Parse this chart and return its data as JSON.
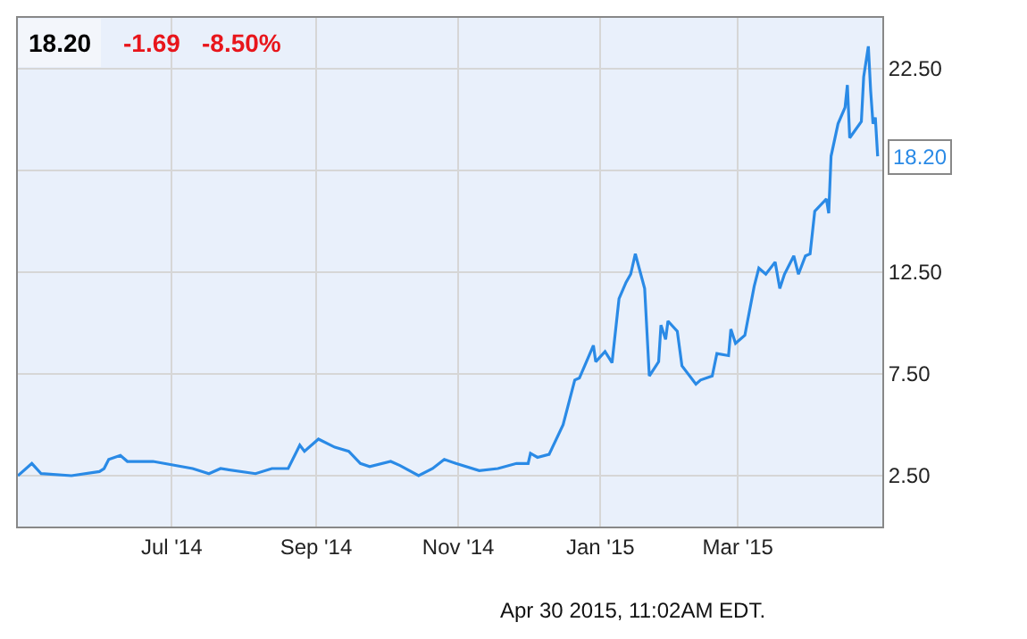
{
  "chart_data": {
    "type": "line",
    "title": "18.20",
    "annotations": [
      "-1.69",
      "-8.50%",
      "Apr 30 2015, 11:02AM EDT.",
      {
        "text": "18.20",
        "x": "2015-04-30",
        "y": 18.2
      }
    ],
    "x": [
      "2014-04-26",
      "2014-05-02",
      "2014-05-06",
      "2014-05-19",
      "2014-05-31",
      "2014-06-02",
      "2014-06-04",
      "2014-06-09",
      "2014-06-12",
      "2014-06-23",
      "2014-07-10",
      "2014-07-17",
      "2014-07-22",
      "2014-08-06",
      "2014-08-13",
      "2014-08-20",
      "2014-08-25",
      "2014-08-27",
      "2014-09-02",
      "2014-09-09",
      "2014-09-15",
      "2014-09-20",
      "2014-09-24",
      "2014-10-03",
      "2014-10-07",
      "2014-10-15",
      "2014-10-21",
      "2014-10-26",
      "2014-10-31",
      "2014-11-10",
      "2014-11-18",
      "2014-11-26",
      "2014-12-01",
      "2014-12-02",
      "2014-12-05",
      "2014-12-10",
      "2014-12-16",
      "2014-12-21",
      "2014-12-23",
      "2014-12-26",
      "2014-12-29",
      "2014-12-30",
      "2015-01-03",
      "2015-01-06",
      "2015-01-09",
      "2015-01-12",
      "2015-01-14",
      "2015-01-16",
      "2015-01-20",
      "2015-01-22",
      "2015-01-26",
      "2015-01-27",
      "2015-01-29",
      "2015-01-30",
      "2015-02-03",
      "2015-02-05",
      "2015-02-11",
      "2015-02-13",
      "2015-02-18",
      "2015-02-20",
      "2015-02-25",
      "2015-02-26",
      "2015-02-28",
      "2015-03-04",
      "2015-03-08",
      "2015-03-10",
      "2015-03-13",
      "2015-03-17",
      "2015-03-19",
      "2015-03-21",
      "2015-03-25",
      "2015-03-27",
      "2015-03-30",
      "2015-04-01",
      "2015-04-03",
      "2015-04-08",
      "2015-04-09",
      "2015-04-10",
      "2015-04-13",
      "2015-04-16",
      "2015-04-17",
      "2015-04-18",
      "2015-04-23",
      "2015-04-24",
      "2015-04-26",
      "2015-04-27",
      "2015-04-28",
      "2015-04-29",
      "2015-04-30"
    ],
    "series": [
      {
        "color": "#2a8ae6",
        "values": [
          2.5,
          3.1,
          2.6,
          2.5,
          2.7,
          2.85,
          3.3,
          3.5,
          3.2,
          3.2,
          2.85,
          2.6,
          2.85,
          2.6,
          2.85,
          2.85,
          4.0,
          3.7,
          4.3,
          3.9,
          3.7,
          3.1,
          2.95,
          3.2,
          3.0,
          2.5,
          2.85,
          3.3,
          3.1,
          2.75,
          2.85,
          3.1,
          3.1,
          3.6,
          3.4,
          3.55,
          5.0,
          7.2,
          7.3,
          8.1,
          8.9,
          8.1,
          8.6,
          8.05,
          11.2,
          12.0,
          12.4,
          13.4,
          11.7,
          7.4,
          8.1,
          9.9,
          9.2,
          10.1,
          9.6,
          7.9,
          7.0,
          7.2,
          7.4,
          8.5,
          8.4,
          9.7,
          9.0,
          9.4,
          11.8,
          12.7,
          12.4,
          13.0,
          11.7,
          12.4,
          13.3,
          12.4,
          13.3,
          13.4,
          15.5,
          16.1,
          15.4,
          18.2,
          19.8,
          20.6,
          21.7,
          19.1,
          19.9,
          22.1,
          23.6,
          21.4,
          19.8,
          20.1,
          18.2
        ]
      }
    ],
    "xlim": [
      "2014-04-26",
      "2015-05-02"
    ],
    "xticks": [
      {
        "value": "2014-07-01",
        "label": "Jul '14"
      },
      {
        "value": "2014-09-01",
        "label": "Sep '14"
      },
      {
        "value": "2014-11-01",
        "label": "Nov '14"
      },
      {
        "value": "2015-01-01",
        "label": "Jan '15"
      },
      {
        "value": "2015-03-01",
        "label": "Mar '15"
      }
    ],
    "ylim": [
      0,
      25
    ],
    "yticks": [
      {
        "value": 2.5,
        "label": "2.50"
      },
      {
        "value": 7.5,
        "label": "7.50"
      },
      {
        "value": 12.5,
        "label": "12.50"
      },
      {
        "value": 17.5,
        "label": null
      },
      {
        "value": 22.5,
        "label": "22.50"
      }
    ],
    "grid": true,
    "marker": "none",
    "line_style": "solid"
  }
}
